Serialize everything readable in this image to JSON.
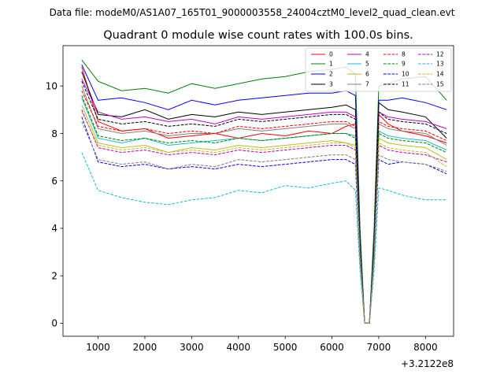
{
  "chart_data": {
    "type": "line",
    "suptitle": "Data file: modeM0/AS1A07_165T01_9000003558_24004cztM0_level2_quad_clean.evt",
    "title": "Quadrant 0 module wise count rates with 100.0s bins.",
    "xlabel": "",
    "ylabel": "",
    "x_offset_label": "+3.2122e8",
    "xlim": [
      250,
      8600
    ],
    "ylim": [
      -0.55,
      11.7
    ],
    "xticks": [
      1000,
      2000,
      3000,
      4000,
      5000,
      6000,
      7000,
      8000
    ],
    "xtick_labels": [
      "1000",
      "2000",
      "3000",
      "4000",
      "5000",
      "6000",
      "7000",
      "8000"
    ],
    "yticks": [
      0,
      2,
      4,
      6,
      8,
      10
    ],
    "ytick_labels": [
      "0",
      "2",
      "4",
      "6",
      "8",
      "10"
    ],
    "grid": false,
    "legend_position": "top-right",
    "series": [
      {
        "name": "0",
        "color": "#ff0000",
        "dash": "solid",
        "x": [
          650,
          1000,
          1500,
          2000,
          2500,
          3000,
          3500,
          4000,
          4500,
          5000,
          5500,
          6000,
          6300,
          6500,
          6600,
          6700,
          6800,
          6900,
          7000,
          7200,
          7500,
          8000,
          8450
        ],
        "y": [
          10.8,
          8.5,
          8.1,
          8.2,
          7.8,
          7.9,
          8.0,
          7.8,
          8.0,
          7.9,
          8.1,
          8.0,
          8.3,
          8.4,
          3.0,
          0.0,
          0.0,
          3.5,
          8.8,
          8.4,
          8.1,
          7.9,
          7.6
        ]
      },
      {
        "name": "1",
        "color": "#008000",
        "dash": "solid",
        "x": [
          650,
          1000,
          1500,
          2000,
          2500,
          3000,
          3500,
          4000,
          4500,
          5000,
          5500,
          6000,
          6300,
          6500,
          6600,
          6700,
          6800,
          6900,
          7000,
          7200,
          7500,
          8000,
          8450
        ],
        "y": [
          11.1,
          10.2,
          9.8,
          9.9,
          9.7,
          10.1,
          9.9,
          10.1,
          10.3,
          10.4,
          10.6,
          10.7,
          10.8,
          10.5,
          4.0,
          0.0,
          0.0,
          4.0,
          10.0,
          10.1,
          10.3,
          10.4,
          9.4
        ]
      },
      {
        "name": "2",
        "color": "#0000ff",
        "dash": "solid",
        "x": [
          650,
          1000,
          1500,
          2000,
          2500,
          3000,
          3500,
          4000,
          4500,
          5000,
          5500,
          6000,
          6300,
          6500,
          6600,
          6700,
          6800,
          6900,
          7000,
          7200,
          7500,
          8000,
          8450
        ],
        "y": [
          10.9,
          9.4,
          9.5,
          9.3,
          9.0,
          9.4,
          9.2,
          9.4,
          9.5,
          9.6,
          9.7,
          9.7,
          9.8,
          9.6,
          3.5,
          0.0,
          0.0,
          3.5,
          9.4,
          9.4,
          9.5,
          9.3,
          9.0
        ]
      },
      {
        "name": "3",
        "color": "#000000",
        "dash": "solid",
        "x": [
          650,
          1000,
          1500,
          2000,
          2500,
          3000,
          3500,
          4000,
          4500,
          5000,
          5500,
          6000,
          6300,
          6500,
          6600,
          6700,
          6800,
          6900,
          7000,
          7200,
          7500,
          8000,
          8450
        ],
        "y": [
          10.6,
          8.8,
          8.7,
          9.0,
          8.6,
          8.8,
          8.7,
          8.9,
          8.8,
          8.9,
          9.0,
          9.1,
          9.2,
          9.0,
          3.3,
          0.0,
          0.0,
          3.3,
          9.3,
          9.0,
          8.9,
          8.7,
          7.8
        ]
      },
      {
        "name": "4",
        "color": "#bf00bf",
        "dash": "solid",
        "x": [
          650,
          1000,
          1500,
          2000,
          2500,
          3000,
          3500,
          4000,
          4500,
          5000,
          5500,
          6000,
          6300,
          6500,
          6600,
          6700,
          6800,
          6900,
          7000,
          7200,
          7500,
          8000,
          8450
        ],
        "y": [
          10.3,
          8.9,
          8.6,
          8.7,
          8.5,
          8.6,
          8.4,
          8.7,
          8.6,
          8.7,
          8.8,
          8.9,
          8.9,
          8.7,
          3.2,
          0.0,
          0.0,
          3.2,
          8.9,
          8.7,
          8.6,
          8.5,
          8.2
        ]
      },
      {
        "name": "5",
        "color": "#17becf",
        "dash": "solid",
        "x": [
          650,
          1000,
          1500,
          2000,
          2500,
          3000,
          3500,
          4000,
          4500,
          5000,
          5500,
          6000,
          6300,
          6500,
          6600,
          6700,
          6800,
          6900,
          7000,
          7200,
          7500,
          8000,
          8450
        ],
        "y": [
          9.5,
          7.8,
          7.6,
          7.8,
          7.5,
          7.6,
          7.7,
          7.8,
          7.7,
          7.8,
          7.9,
          8.0,
          8.0,
          7.9,
          3.0,
          0.0,
          0.0,
          3.0,
          8.1,
          7.9,
          7.8,
          7.7,
          7.3
        ]
      },
      {
        "name": "6",
        "color": "#bcbd22",
        "dash": "solid",
        "x": [
          650,
          1000,
          1500,
          2000,
          2500,
          3000,
          3500,
          4000,
          4500,
          5000,
          5500,
          6000,
          6300,
          6500,
          6600,
          6700,
          6800,
          6900,
          7000,
          7200,
          7500,
          8000,
          8450
        ],
        "y": [
          9.2,
          7.6,
          7.4,
          7.5,
          7.2,
          7.4,
          7.3,
          7.5,
          7.4,
          7.5,
          7.6,
          7.7,
          7.6,
          7.5,
          2.9,
          0.0,
          0.0,
          2.9,
          7.8,
          7.6,
          7.5,
          7.4,
          6.9
        ]
      },
      {
        "name": "7",
        "color": "#7f7f7f",
        "dash": "solid",
        "x": [
          650,
          1000,
          1500,
          2000,
          2500,
          3000,
          3500,
          4000,
          4500,
          5000,
          5500,
          6000,
          6300,
          6500,
          6600,
          6700,
          6800,
          6900,
          7000,
          7200,
          7500,
          8000,
          8450
        ],
        "y": [
          10.0,
          8.2,
          8.0,
          8.1,
          7.9,
          8.0,
          8.0,
          8.2,
          8.1,
          8.2,
          8.3,
          8.4,
          8.4,
          8.2,
          3.1,
          0.0,
          0.0,
          3.1,
          8.4,
          8.2,
          8.1,
          8.0,
          7.5
        ]
      },
      {
        "name": "8",
        "color": "#ff0000",
        "dash": "dashed",
        "x": [
          650,
          1000,
          1500,
          2000,
          2500,
          3000,
          3500,
          4000,
          4500,
          5000,
          5500,
          6000,
          6300,
          6500,
          6600,
          6700,
          6800,
          6900,
          7000,
          7200,
          7500,
          8000,
          8450
        ],
        "y": [
          9.8,
          8.3,
          8.1,
          8.2,
          8.0,
          8.1,
          8.0,
          8.3,
          8.2,
          8.3,
          8.4,
          8.5,
          8.5,
          8.3,
          3.1,
          0.0,
          0.0,
          3.1,
          8.5,
          8.3,
          8.2,
          8.1,
          7.7
        ]
      },
      {
        "name": "9",
        "color": "#008000",
        "dash": "dashed",
        "x": [
          650,
          1000,
          1500,
          2000,
          2500,
          3000,
          3500,
          4000,
          4500,
          5000,
          5500,
          6000,
          6300,
          6500,
          6600,
          6700,
          6800,
          6900,
          7000,
          7200,
          7500,
          8000,
          8450
        ],
        "y": [
          9.6,
          7.9,
          7.7,
          7.8,
          7.6,
          7.7,
          7.6,
          7.8,
          7.7,
          7.8,
          7.9,
          8.0,
          8.0,
          7.8,
          3.0,
          0.0,
          0.0,
          3.0,
          8.0,
          7.8,
          7.7,
          7.6,
          7.2
        ]
      },
      {
        "name": "10",
        "color": "#0000ff",
        "dash": "dashed",
        "x": [
          650,
          1000,
          1500,
          2000,
          2500,
          3000,
          3500,
          4000,
          4500,
          5000,
          5500,
          6000,
          6300,
          6500,
          6600,
          6700,
          6800,
          6900,
          7000,
          7200,
          7500,
          8000,
          8450
        ],
        "y": [
          8.7,
          6.8,
          6.6,
          6.7,
          6.5,
          6.6,
          6.5,
          6.7,
          6.6,
          6.7,
          6.8,
          6.9,
          6.9,
          6.7,
          2.6,
          0.0,
          0.0,
          2.6,
          6.9,
          6.7,
          6.8,
          6.7,
          6.3
        ]
      },
      {
        "name": "11",
        "color": "#000000",
        "dash": "dashed",
        "x": [
          650,
          1000,
          1500,
          2000,
          2500,
          3000,
          3500,
          4000,
          4500,
          5000,
          5500,
          6000,
          6300,
          6500,
          6600,
          6700,
          6800,
          6900,
          7000,
          7200,
          7500,
          8000,
          8450
        ],
        "y": [
          10.2,
          8.6,
          8.4,
          8.5,
          8.3,
          8.4,
          8.3,
          8.6,
          8.5,
          8.6,
          8.7,
          8.8,
          8.8,
          8.6,
          3.2,
          0.0,
          0.0,
          3.2,
          8.9,
          8.6,
          8.5,
          8.4,
          8.0
        ]
      },
      {
        "name": "12",
        "color": "#bf00bf",
        "dash": "dashed",
        "x": [
          650,
          1000,
          1500,
          2000,
          2500,
          3000,
          3500,
          4000,
          4500,
          5000,
          5500,
          6000,
          6300,
          6500,
          6600,
          6700,
          6800,
          6900,
          7000,
          7200,
          7500,
          8000,
          8450
        ],
        "y": [
          9.0,
          7.4,
          7.2,
          7.3,
          7.1,
          7.2,
          7.1,
          7.3,
          7.2,
          7.3,
          7.4,
          7.5,
          7.5,
          7.3,
          2.8,
          0.0,
          0.0,
          2.8,
          7.5,
          7.3,
          7.2,
          7.1,
          6.8
        ]
      },
      {
        "name": "13",
        "color": "#17becf",
        "dash": "dashed",
        "x": [
          650,
          1000,
          1500,
          2000,
          2500,
          3000,
          3500,
          4000,
          4500,
          5000,
          5500,
          6000,
          6300,
          6500,
          6600,
          6700,
          6800,
          6900,
          7000,
          7200,
          7500,
          8000,
          8450
        ],
        "y": [
          7.2,
          5.6,
          5.3,
          5.1,
          5.0,
          5.2,
          5.3,
          5.6,
          5.5,
          5.8,
          5.7,
          5.9,
          6.0,
          5.6,
          2.2,
          0.0,
          0.0,
          2.2,
          5.7,
          5.6,
          5.4,
          5.2,
          5.2
        ]
      },
      {
        "name": "14",
        "color": "#bcbd22",
        "dash": "dashed",
        "x": [
          650,
          1000,
          1500,
          2000,
          2500,
          3000,
          3500,
          4000,
          4500,
          5000,
          5500,
          6000,
          6300,
          6500,
          6600,
          6700,
          6800,
          6900,
          7000,
          7200,
          7500,
          8000,
          8450
        ],
        "y": [
          8.9,
          7.5,
          7.3,
          7.4,
          7.2,
          7.3,
          7.2,
          7.4,
          7.3,
          7.4,
          7.5,
          7.6,
          7.6,
          7.4,
          2.8,
          0.0,
          0.0,
          2.8,
          7.6,
          7.4,
          7.3,
          7.2,
          6.6
        ]
      },
      {
        "name": "15",
        "color": "#7f7f7f",
        "dash": "dashed",
        "x": [
          650,
          1000,
          1500,
          2000,
          2500,
          3000,
          3500,
          4000,
          4500,
          5000,
          5500,
          6000,
          6300,
          6500,
          6600,
          6700,
          6800,
          6900,
          7000,
          7200,
          7500,
          8000,
          8450
        ],
        "y": [
          8.5,
          6.9,
          6.7,
          6.8,
          6.5,
          6.7,
          6.6,
          6.9,
          6.8,
          6.9,
          7.0,
          7.1,
          7.1,
          6.9,
          2.7,
          0.0,
          0.0,
          2.7,
          7.1,
          6.9,
          6.8,
          6.7,
          6.4
        ]
      }
    ]
  }
}
